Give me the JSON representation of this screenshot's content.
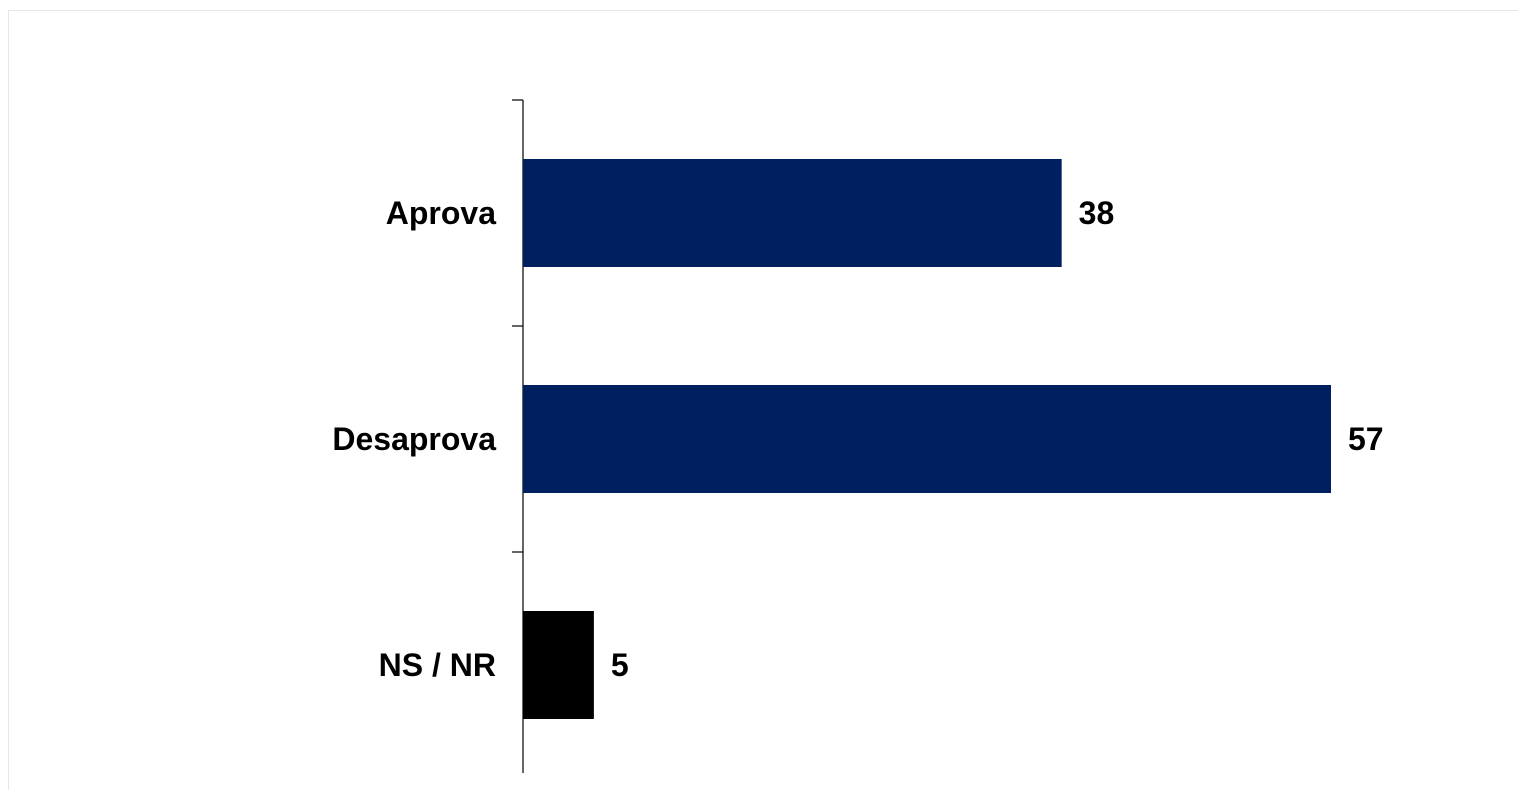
{
  "chart_data": {
    "type": "bar",
    "orientation": "horizontal",
    "categories": [
      "Aprova",
      "Desaprova",
      "NS / NR"
    ],
    "values": [
      38,
      57,
      5
    ],
    "colors": [
      "#001f5f",
      "#001f5f",
      "#000000"
    ],
    "data_labels": [
      "38",
      "57",
      "5"
    ],
    "title": "",
    "xlabel": "",
    "ylabel": "",
    "xlim": [
      0,
      60
    ],
    "grid": false,
    "legend": "none",
    "x_axis_visible": false
  }
}
